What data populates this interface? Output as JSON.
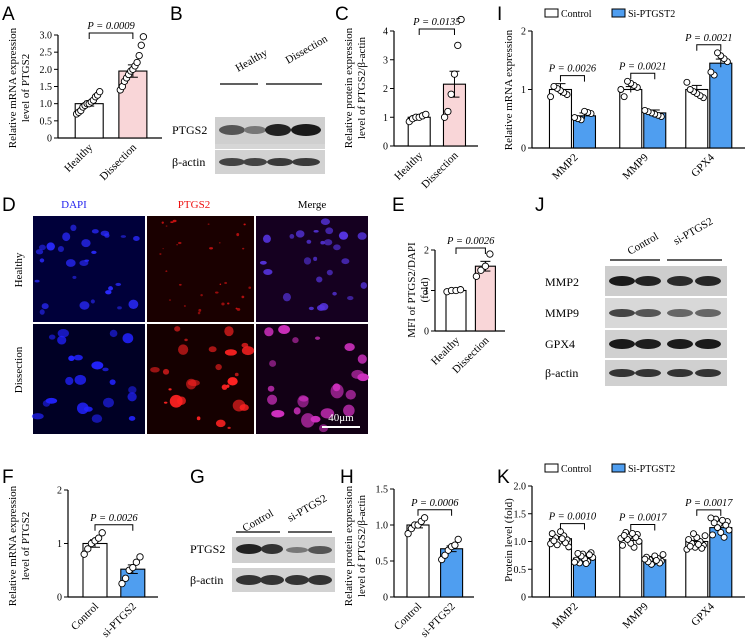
{
  "panels": {
    "A": {
      "letter": "A",
      "ylabel_line1": "Relative mRNA expression",
      "ylabel_line2": "level of PTGS2",
      "p": "P = 0.0009",
      "yticks": [
        "0",
        "0.5",
        "1.0",
        "1.5",
        "2.0",
        "2.5",
        "3.0"
      ],
      "cats": [
        "Healthy",
        "Dissection"
      ]
    },
    "B": {
      "letter": "B",
      "groups": [
        "Healthy",
        "Dissection"
      ],
      "rows": [
        "PTGS2",
        "β-actin"
      ]
    },
    "C": {
      "letter": "C",
      "ylabel_line1": "Relative protein expression",
      "ylabel_line2": "level of PTGS2/β-actin",
      "p": "P = 0.0135",
      "yticks": [
        "0",
        "1",
        "2",
        "3",
        "4"
      ],
      "cats": [
        "Healthy",
        "Dissection"
      ]
    },
    "I": {
      "letter": "I",
      "ylabel": "Relative mRNA expression",
      "legend": [
        "Control",
        "Si-PTGST2"
      ],
      "p": [
        "P = 0.0026",
        "P = 0.0021",
        "P = 0.0021"
      ],
      "yticks": [
        "0",
        "1",
        "2"
      ],
      "cats": [
        "MMP2",
        "MMP9",
        "GPX4"
      ]
    },
    "D": {
      "letter": "D",
      "cols": [
        "DAPI",
        "PTGS2",
        "Merge"
      ],
      "rows": [
        "Healthy",
        "Dissection"
      ],
      "scale": "40μm"
    },
    "E": {
      "letter": "E",
      "ylabel": "MFI of PTGS2/DAPI",
      "ylabel2": "(fold)",
      "p": "P = 0.0026",
      "yticks": [
        "0",
        "1",
        "2"
      ],
      "cats": [
        "Healthy",
        "Dissection"
      ]
    },
    "J": {
      "letter": "J",
      "groups": [
        "Control",
        "si-PTGS2"
      ],
      "rows": [
        "MMP2",
        "MMP9",
        "GPX4",
        "β-actin"
      ]
    },
    "F": {
      "letter": "F",
      "ylabel_line1": "Relative mRNA expression",
      "ylabel_line2": "level of PTGS2",
      "p": "P = 0.0026",
      "yticks": [
        "0",
        "1",
        "2"
      ],
      "cats": [
        "Control",
        "si-PTGS2"
      ]
    },
    "G": {
      "letter": "G",
      "groups": [
        "Control",
        "si-PTGS2"
      ],
      "rows": [
        "PTGS2",
        "β-actin"
      ]
    },
    "H": {
      "letter": "H",
      "ylabel_line1": "Relative protein expression",
      "ylabel_line2": "level of PTGS2/β-actin",
      "p": "P = 0.0006",
      "yticks": [
        "0",
        "0.5",
        "1.0",
        "1.5"
      ],
      "cats": [
        "Control",
        "si-PTGS2"
      ]
    },
    "K": {
      "letter": "K",
      "ylabel": "Protein level (fold)",
      "legend": [
        "Control",
        "Si-PTGST2"
      ],
      "p": [
        "P = 0.0010",
        "P = 0.0017",
        "P = 0.0017"
      ],
      "yticks": [
        "0",
        "0.5",
        "1.0",
        "1.5",
        "2.0"
      ],
      "cats": [
        "MMP2",
        "MMP9",
        "GPX4"
      ]
    }
  },
  "colors": {
    "control": "#ffffff",
    "blue": "#4f9ef0",
    "pink": "#f9d6d8",
    "dapi": "#1a1aff",
    "ptgs2": "#ff2020"
  },
  "chart_data": [
    {
      "type": "bar",
      "panel": "A",
      "categories": [
        "Healthy",
        "Dissection"
      ],
      "values": [
        1.0,
        1.95
      ],
      "errors": [
        0.07,
        0.18
      ],
      "ylim": [
        0,
        3
      ],
      "points": [
        [
          0.7,
          0.75,
          0.8,
          0.9,
          0.95,
          1.0,
          1.0,
          1.05,
          1.1,
          1.2,
          1.25,
          1.35
        ],
        [
          1.4,
          1.5,
          1.65,
          1.75,
          1.85,
          1.95,
          2.0,
          2.1,
          2.2,
          2.4,
          2.7,
          2.95
        ]
      ]
    },
    {
      "type": "bar",
      "panel": "C",
      "categories": [
        "Healthy",
        "Dissection"
      ],
      "values": [
        1.0,
        2.15
      ],
      "errors": [
        0.05,
        0.45
      ],
      "ylim": [
        0,
        4
      ],
      "points": [
        [
          0.85,
          0.95,
          1.0,
          1.0,
          1.05,
          1.1
        ],
        [
          1.0,
          1.2,
          1.8,
          2.5,
          3.5,
          4.4
        ]
      ]
    },
    {
      "type": "bar",
      "panel": "I",
      "categories": [
        "MMP2",
        "MMP9",
        "GPX4"
      ],
      "series": [
        {
          "name": "Control",
          "values": [
            1.0,
            1.0,
            1.0
          ],
          "errors": [
            0.1,
            0.05,
            0.07
          ]
        },
        {
          "name": "Si-PTGST2",
          "values": [
            0.55,
            0.6,
            1.45
          ],
          "errors": [
            0.05,
            0.05,
            0.07
          ]
        }
      ],
      "ylim": [
        0,
        2
      ]
    },
    {
      "type": "bar",
      "panel": "E",
      "categories": [
        "Healthy",
        "Dissection"
      ],
      "values": [
        1.0,
        1.6
      ],
      "errors": [
        0.02,
        0.12
      ],
      "ylim": [
        0,
        2
      ],
      "points": [
        [
          0.97,
          1.0,
          1.0,
          1.02
        ],
        [
          1.35,
          1.5,
          1.6,
          1.9
        ]
      ]
    },
    {
      "type": "bar",
      "panel": "F",
      "categories": [
        "Control",
        "si-PTGS2"
      ],
      "values": [
        1.0,
        0.52
      ],
      "errors": [
        0.07,
        0.08
      ],
      "ylim": [
        0,
        2
      ],
      "points": [
        [
          0.8,
          0.9,
          1.0,
          1.05,
          1.1,
          1.2
        ],
        [
          0.25,
          0.35,
          0.5,
          0.55,
          0.65,
          0.75
        ]
      ]
    },
    {
      "type": "bar",
      "panel": "H",
      "categories": [
        "Control",
        "si-PTGS2"
      ],
      "values": [
        1.0,
        0.67
      ],
      "errors": [
        0.04,
        0.04
      ],
      "ylim": [
        0,
        1.5
      ],
      "points": [
        [
          0.88,
          0.95,
          1.0,
          1.0,
          1.05,
          1.1
        ],
        [
          0.52,
          0.58,
          0.65,
          0.7,
          0.72,
          0.8
        ]
      ]
    },
    {
      "type": "bar",
      "panel": "K",
      "categories": [
        "MMP2",
        "MMP9",
        "GPX4"
      ],
      "series": [
        {
          "name": "Control",
          "values": [
            1.05,
            1.02,
            1.0
          ],
          "errors": [
            0.04,
            0.04,
            0.02
          ]
        },
        {
          "name": "Si-PTGST2",
          "values": [
            0.7,
            0.67,
            1.25
          ],
          "errors": [
            0.05,
            0.06,
            0.06
          ]
        }
      ],
      "ylim": [
        0,
        2
      ]
    }
  ]
}
